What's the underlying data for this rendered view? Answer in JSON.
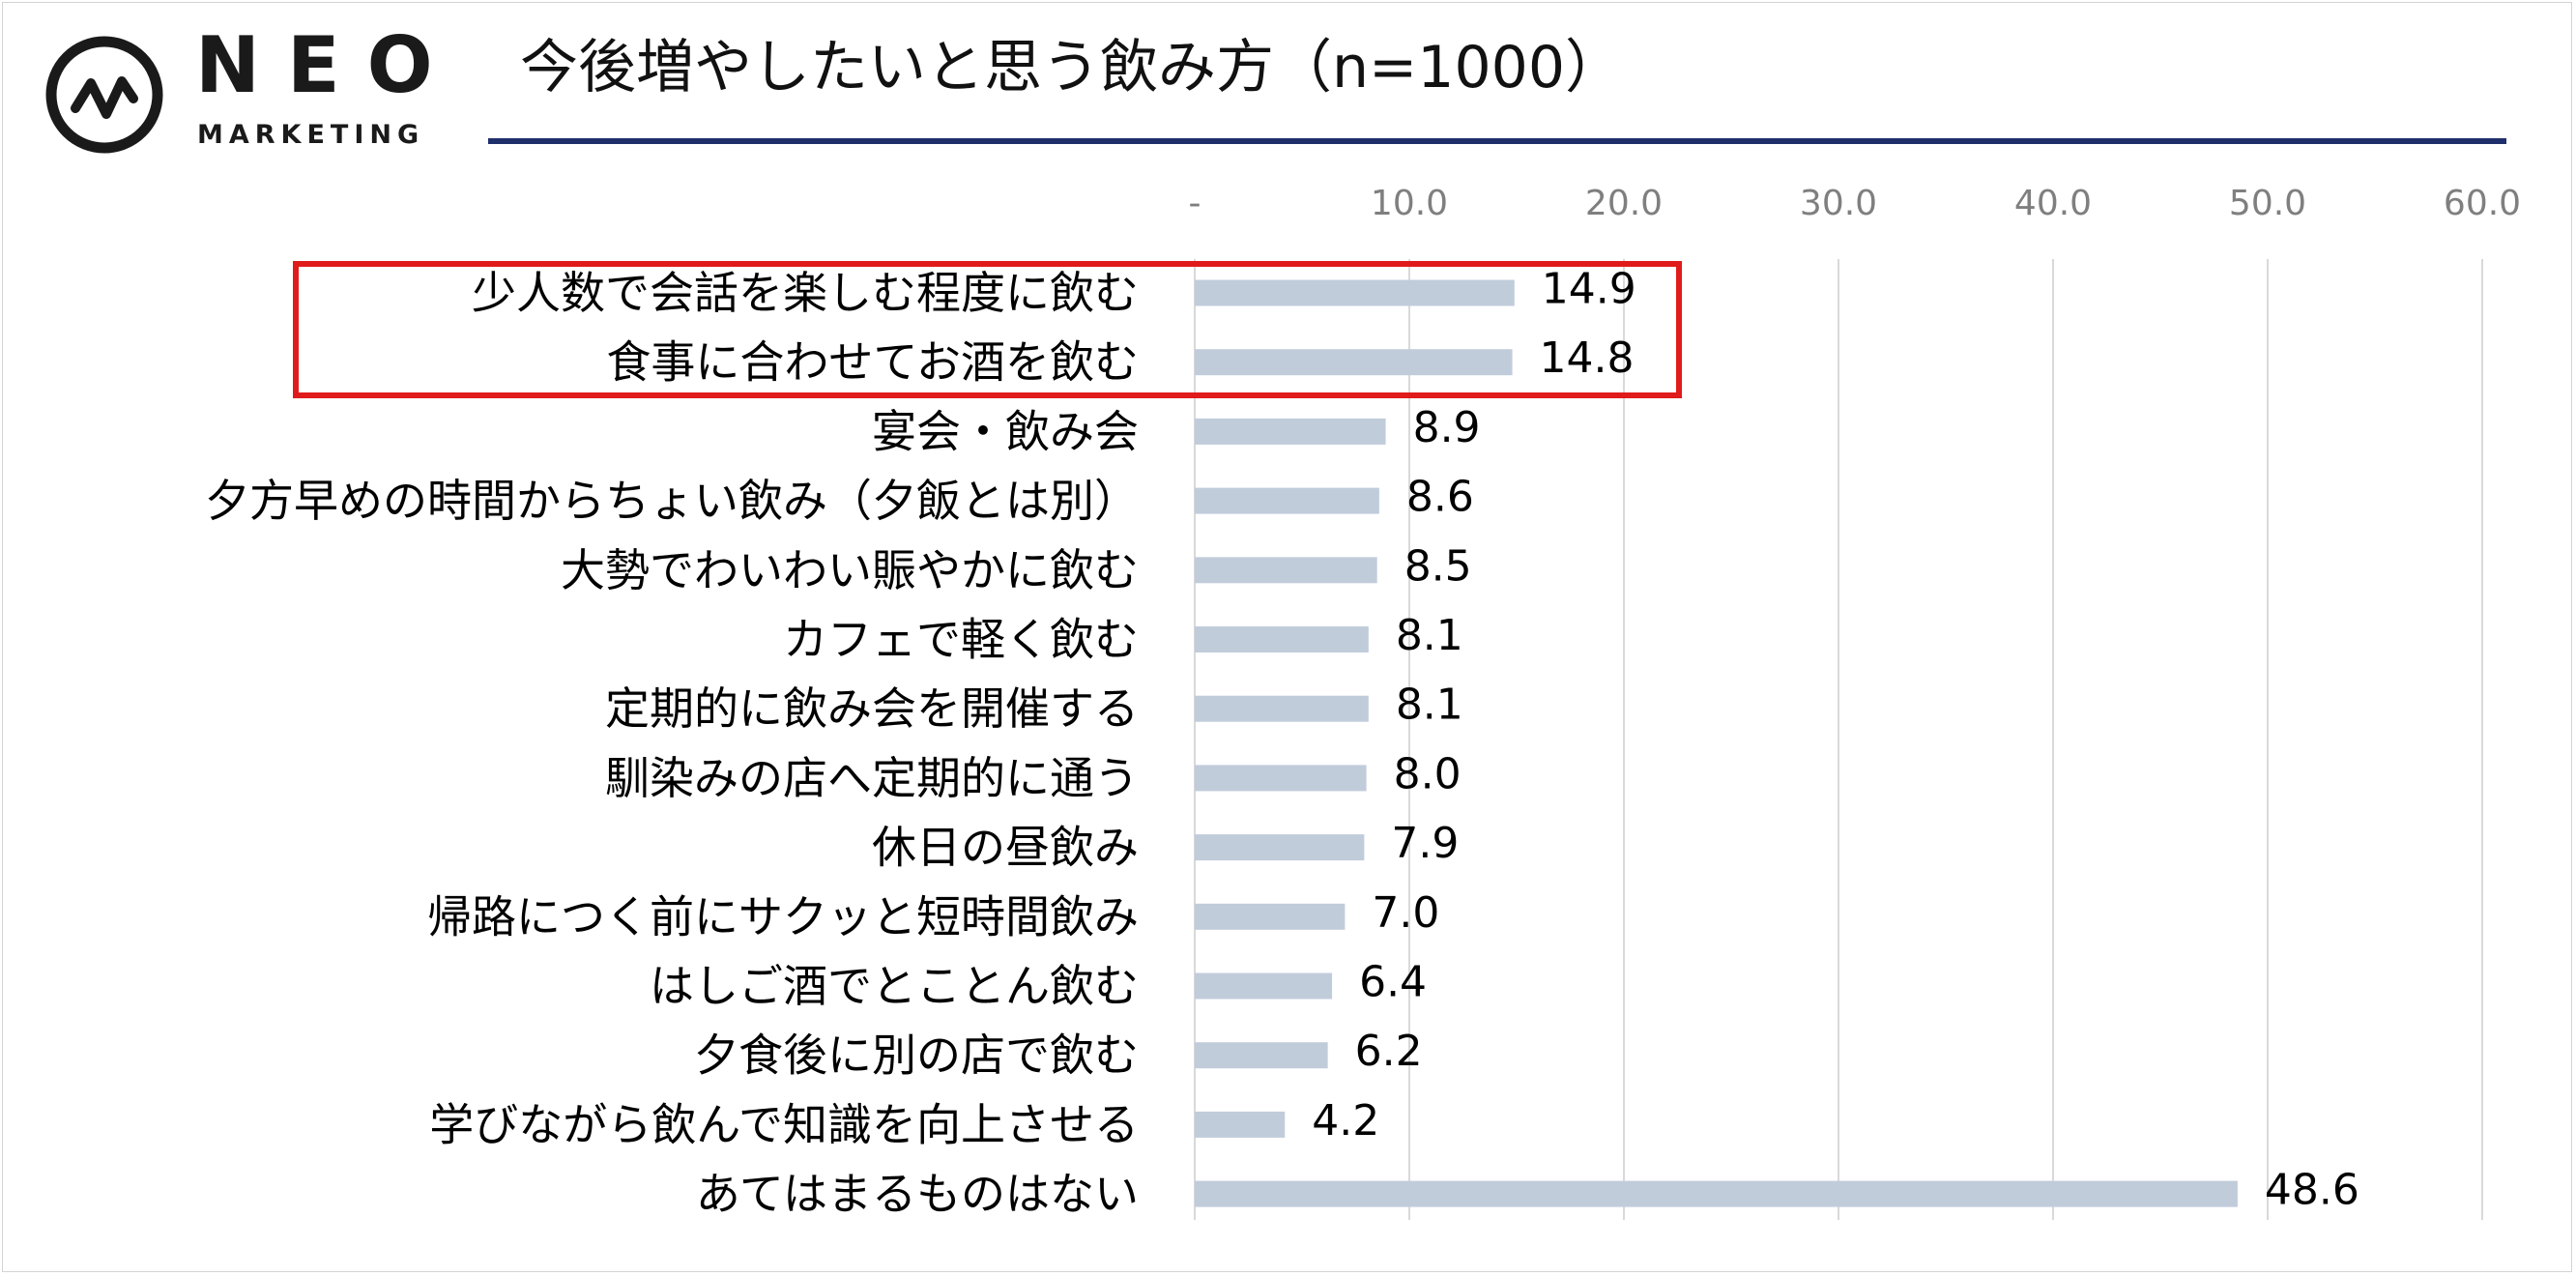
{
  "logo": {
    "word": "NEO",
    "sub": "MARKETING"
  },
  "title": "今後増やしたいと思う飲み方（n=1000）",
  "colors": {
    "bar": "#c1ccdb",
    "title_rule": "#1f2f6b",
    "highlight": "#e01b1b",
    "grid": "#d9d9d9"
  },
  "chart_data": {
    "type": "bar",
    "orientation": "horizontal",
    "xlim": [
      0,
      60
    ],
    "tick_values": [
      0,
      10,
      20,
      30,
      40,
      50,
      60
    ],
    "tick_labels": [
      "-",
      "10.0",
      "20.0",
      "30.0",
      "40.0",
      "50.0",
      "60.0"
    ],
    "grid": true,
    "categories": [
      "少人数で会話を楽しむ程度に飲む",
      "食事に合わせてお酒を飲む",
      "宴会・飲み会",
      "夕方早めの時間からちょい飲み（夕飯とは別）",
      "大勢でわいわい賑やかに飲む",
      "カフェで軽く飲む",
      "定期的に飲み会を開催する",
      "馴染みの店へ定期的に通う",
      "休日の昼飲み",
      "帰路につく前にサクッと短時間飲み",
      "はしご酒でとことん飲む",
      "夕食後に別の店で飲む",
      "学びながら飲んで知識を向上させる",
      "あてはまるものはない"
    ],
    "values": [
      14.9,
      14.8,
      8.9,
      8.6,
      8.5,
      8.1,
      8.1,
      8.0,
      7.9,
      7.0,
      6.4,
      6.2,
      4.2,
      48.6
    ],
    "value_labels": [
      "14.9",
      "14.8",
      "8.9",
      "8.6",
      "8.5",
      "8.1",
      "8.1",
      "8.0",
      "7.9",
      "7.0",
      "6.4",
      "6.2",
      "4.2",
      "48.6"
    ],
    "highlighted_categories": [
      "少人数で会話を楽しむ程度に飲む",
      "食事に合わせてお酒を飲む"
    ]
  }
}
